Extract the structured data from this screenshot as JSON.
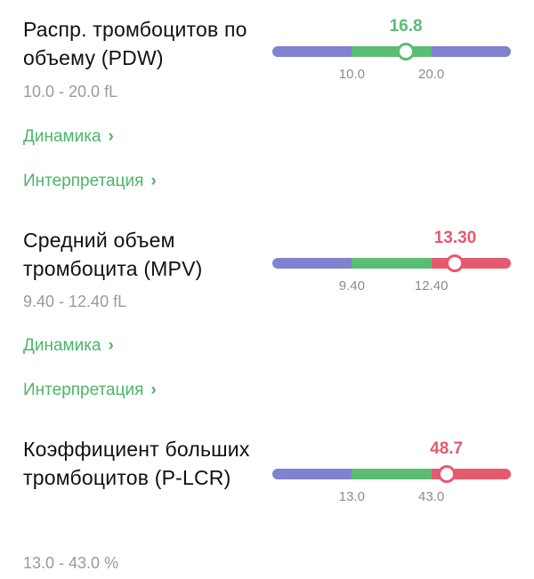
{
  "colors": {
    "low": "#7f82cf",
    "normal": "#5bbd74",
    "high": "#e55a6e"
  },
  "metrics": [
    {
      "name": "Распр. тромбоцитов по объему (PDW)",
      "range_text": "10.0 - 20.0 fL",
      "value_text": "16.8",
      "value": 16.8,
      "status": "normal",
      "low_tick": "10.0",
      "high_tick": "20.0",
      "low": 10.0,
      "high": 20.0,
      "dynamics_label": "Динамика",
      "interpretation_label": "Интерпретация"
    },
    {
      "name": "Средний объем тромбоцита (MPV)",
      "range_text": "9.40 - 12.40 fL",
      "value_text": "13.30",
      "value": 13.3,
      "status": "high",
      "low_tick": "9.40",
      "high_tick": "12.40",
      "low": 9.4,
      "high": 12.4,
      "dynamics_label": "Динамика",
      "interpretation_label": "Интерпретация"
    },
    {
      "name": "Коэффициент больших тромбоцитов (P-LCR)",
      "range_text": "13.0 - 43.0 %",
      "value_text": "48.7",
      "value": 48.7,
      "status": "high",
      "low_tick": "13.0",
      "high_tick": "43.0",
      "low": 13.0,
      "high": 43.0
    }
  ]
}
